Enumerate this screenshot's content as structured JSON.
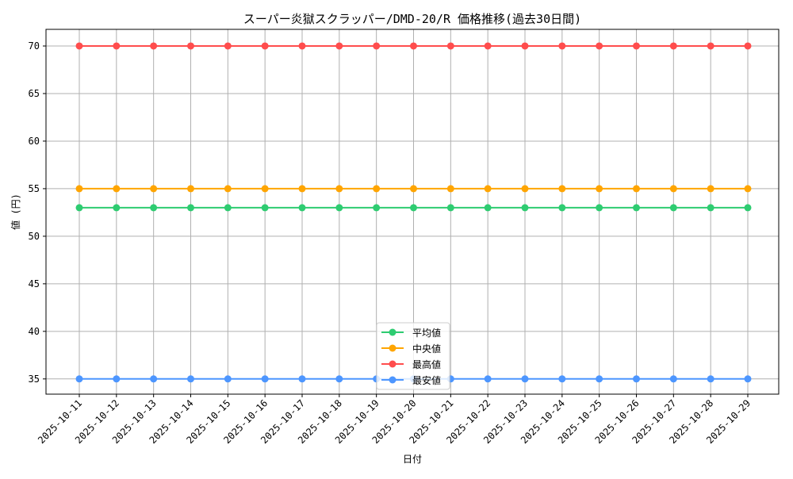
{
  "chart_data": {
    "type": "line",
    "title": "スーパー炎獄スクラッパー/DMD-20/R 価格推移(過去30日間)",
    "xlabel": "日付",
    "ylabel": "値 (円)",
    "x": [
      "2025-10-11",
      "2025-10-12",
      "2025-10-13",
      "2025-10-14",
      "2025-10-15",
      "2025-10-16",
      "2025-10-17",
      "2025-10-18",
      "2025-10-19",
      "2025-10-20",
      "2025-10-21",
      "2025-10-22",
      "2025-10-23",
      "2025-10-24",
      "2025-10-25",
      "2025-10-26",
      "2025-10-27",
      "2025-10-28",
      "2025-10-29"
    ],
    "yticks": [
      35,
      40,
      45,
      50,
      55,
      60,
      65,
      70
    ],
    "ylim": [
      33.4,
      71.75
    ],
    "grid": true,
    "legend_position": "bottom-center",
    "series": [
      {
        "name": "平均値",
        "color": "#2ecc71",
        "values": [
          53,
          53,
          53,
          53,
          53,
          53,
          53,
          53,
          53,
          53,
          53,
          53,
          53,
          53,
          53,
          53,
          53,
          53,
          53
        ]
      },
      {
        "name": "中央値",
        "color": "#ffa500",
        "values": [
          55,
          55,
          55,
          55,
          55,
          55,
          55,
          55,
          55,
          55,
          55,
          55,
          55,
          55,
          55,
          55,
          55,
          55,
          55
        ]
      },
      {
        "name": "最高値",
        "color": "#ff4d4d",
        "values": [
          70,
          70,
          70,
          70,
          70,
          70,
          70,
          70,
          70,
          70,
          70,
          70,
          70,
          70,
          70,
          70,
          70,
          70,
          70
        ]
      },
      {
        "name": "最安値",
        "color": "#4d96ff",
        "values": [
          35,
          35,
          35,
          35,
          35,
          35,
          35,
          35,
          35,
          35,
          35,
          35,
          35,
          35,
          35,
          35,
          35,
          35,
          35
        ]
      }
    ]
  }
}
